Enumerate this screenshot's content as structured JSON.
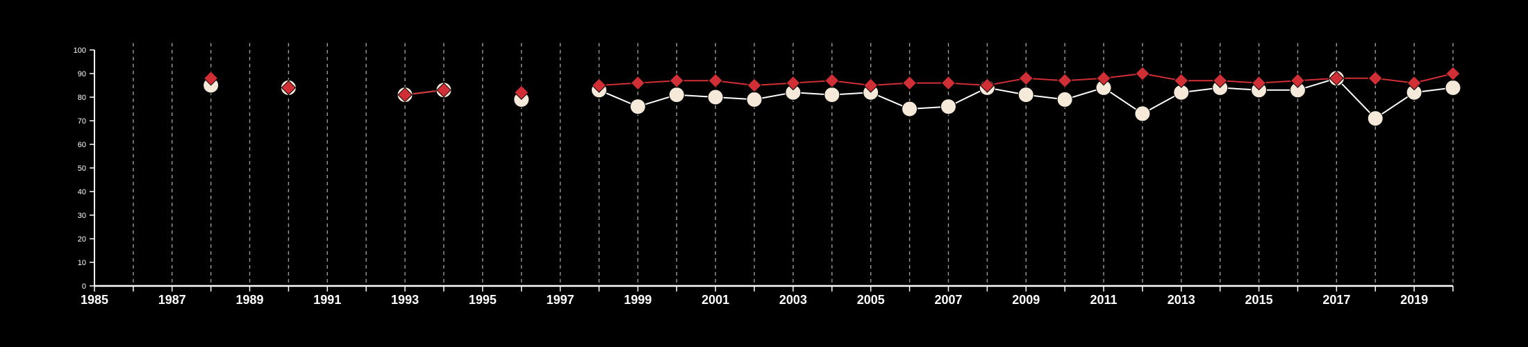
{
  "chart_data": {
    "type": "line",
    "title": "",
    "xlabel": "",
    "ylabel": "",
    "xlim": [
      1985,
      2020
    ],
    "ylim": [
      0,
      100
    ],
    "grid": "vertical-dashed-yearly",
    "legend": "none",
    "yticks": [
      "0",
      "10",
      "20",
      "30",
      "40",
      "50",
      "60",
      "70",
      "80",
      "90",
      "100"
    ],
    "xticks": [
      "1985",
      "1987",
      "1989",
      "1991",
      "1993",
      "1995",
      "1997",
      "1999",
      "2001",
      "2003",
      "2005",
      "2007",
      "2009",
      "2011",
      "2013",
      "2015",
      "2017",
      "2019"
    ],
    "x": [
      1988,
      1990,
      1993,
      1994,
      1996,
      1998,
      1999,
      2000,
      2001,
      2002,
      2003,
      2004,
      2005,
      2006,
      2007,
      2008,
      2009,
      2010,
      2011,
      2012,
      2013,
      2014,
      2015,
      2016,
      2017,
      2018,
      2019,
      2020
    ],
    "series": [
      {
        "marker": "circle",
        "color": "#f5ead9",
        "line_color": "#ffffff",
        "values": [
          85,
          84,
          81,
          83,
          79,
          83,
          76,
          81,
          80,
          79,
          82,
          81,
          82,
          75,
          76,
          84,
          81,
          79,
          84,
          73,
          82,
          84,
          83,
          83,
          88,
          71,
          82,
          84
        ]
      },
      {
        "marker": "diamond",
        "color": "#d12f36",
        "line_color": "#d12f36",
        "values": [
          88,
          84,
          81,
          83,
          82,
          85,
          86,
          87,
          87,
          85,
          86,
          87,
          85,
          86,
          86,
          85,
          88,
          87,
          88,
          90,
          87,
          87,
          86,
          87,
          88,
          88,
          86,
          90
        ]
      }
    ]
  }
}
